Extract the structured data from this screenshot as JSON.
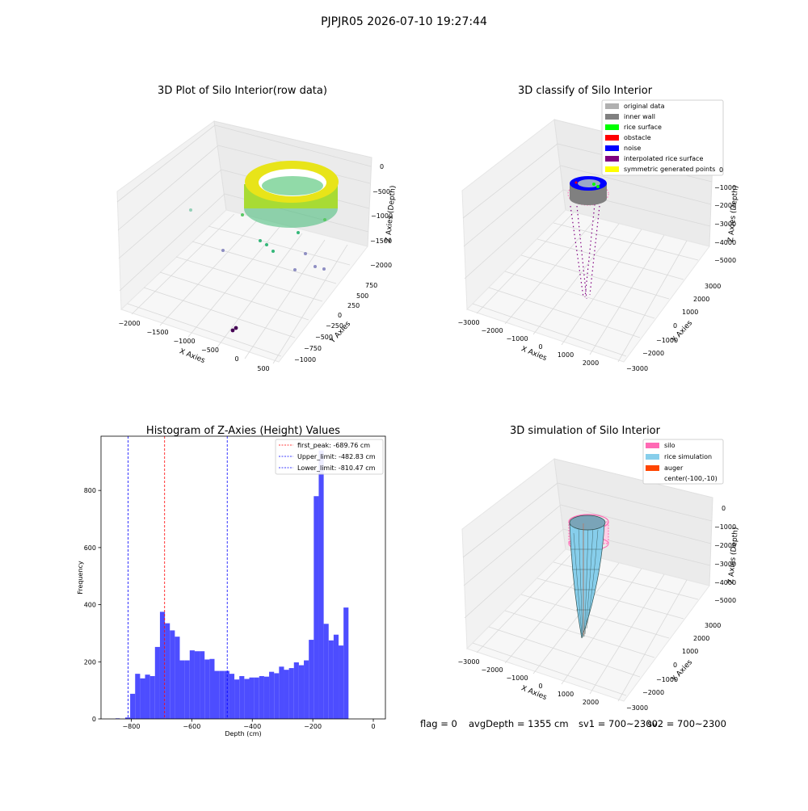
{
  "suptitle": "PJPJR05 2026-07-10 19:27:44",
  "status": {
    "flag": "flag = 0",
    "avg": "avgDepth = 1355 cm",
    "sv1": "sv1 = 700~2300",
    "sv2": "sv2 = 700~2300"
  },
  "colors": {
    "bar": "#4d4dff",
    "first_peak_line": "#ff0000",
    "limit_line": "#0000ff",
    "inner_wall": "#808080",
    "rice_surface": "#00ff00",
    "obstacle": "#ff0000",
    "noise": "#0000ff",
    "interpolated": "#800080",
    "symmetric": "#ffff00",
    "original": "#b0b0b0",
    "silo": "#ff69b4",
    "rice_sim": "#87ceeb",
    "auger": "#ff4500"
  },
  "chart_data": [
    {
      "type": "scatter",
      "projection": "3d",
      "title": "3D Plot of Silo Interior(row data)",
      "xlabel": "X Axies",
      "ylabel": "Y Axies",
      "zlabel": "Z Axies (Depth)",
      "xlim": [
        -2200,
        700
      ],
      "ylim": [
        -1050,
        800
      ],
      "zlim": [
        -2100,
        50
      ],
      "xticks": [
        -2000,
        -1500,
        -1000,
        -500,
        0,
        500
      ],
      "yticks": [
        -1000,
        -750,
        -500,
        -250,
        0,
        250,
        500,
        750
      ],
      "zticks": [
        -2000,
        -1500,
        -1000,
        -500,
        0
      ],
      "colormap": "viridis",
      "grid": true
    },
    {
      "type": "scatter",
      "projection": "3d",
      "title": "3D classify of Silo Interior",
      "xlabel": "X Axies",
      "ylabel": "Y Axies",
      "zlabel": "Z Axies (Depth)",
      "xlim": [
        -3200,
        2600
      ],
      "ylim": [
        -3200,
        3200
      ],
      "zlim": [
        -5700,
        300
      ],
      "xticks": [
        -3000,
        -2000,
        -1000,
        0,
        1000,
        2000
      ],
      "yticks": [
        -3000,
        -2000,
        -1000,
        0,
        1000,
        2000,
        3000
      ],
      "zticks": [
        -5000,
        -4000,
        -3000,
        -2000,
        -1000,
        0
      ],
      "legend": [
        "original data",
        "inner wall",
        "rice surface",
        "obstacle",
        "noise",
        "interpolated rice surface",
        "symmetric generated points"
      ],
      "legend_loc": "top-right",
      "grid": true
    },
    {
      "type": "bar",
      "subtype": "histogram",
      "title": "Histogram of Z-Axies (Height) Values",
      "xlabel": "Depth (cm)",
      "ylabel": "Frequency",
      "xlim": [
        -900,
        40
      ],
      "ylim": [
        0,
        990
      ],
      "xticks": [
        -800,
        -600,
        -400,
        -200,
        0
      ],
      "yticks": [
        0,
        200,
        400,
        600,
        800
      ],
      "bin_start": -820,
      "bin_width": 16.4,
      "counts": [
        5,
        88,
        158,
        142,
        155,
        150,
        252,
        375,
        335,
        310,
        288,
        205,
        205,
        240,
        237,
        237,
        208,
        210,
        168,
        168,
        168,
        158,
        138,
        150,
        140,
        145,
        145,
        150,
        148,
        165,
        160,
        183,
        172,
        178,
        198,
        188,
        205,
        277,
        780,
        940,
        333,
        275,
        295,
        257,
        390
      ],
      "extra_bars": [
        {
          "x": -852,
          "width": 14,
          "value": 2
        }
      ],
      "vlines": [
        {
          "x": -689.76,
          "label": "first_peak: -689.76 cm",
          "color": "#ff0000"
        },
        {
          "x": -482.83,
          "label": "Upper_limit: -482.83 cm",
          "color": "#0000ff"
        },
        {
          "x": -810.47,
          "label": "Lower_limit: -810.47 cm",
          "color": "#0000ff"
        }
      ],
      "legend_loc": "top-right"
    },
    {
      "type": "surface",
      "projection": "3d",
      "title": "3D simulation of Silo Interior",
      "xlabel": "X Axies",
      "ylabel": "Y Axies",
      "zlabel": "Z Axies (Depth)",
      "xlim": [
        -3200,
        2600
      ],
      "ylim": [
        -3200,
        3200
      ],
      "zlim": [
        -5700,
        300
      ],
      "xticks": [
        -3000,
        -2000,
        -1000,
        0,
        1000,
        2000
      ],
      "yticks": [
        -3000,
        -2000,
        -1000,
        0,
        1000,
        2000,
        3000
      ],
      "zticks": [
        -5000,
        -4000,
        -3000,
        -2000,
        -1000,
        0
      ],
      "legend": [
        "silo",
        "rice simulation",
        "auger",
        "center(-100,-10)"
      ],
      "legend_loc": "top-right",
      "grid": true
    }
  ]
}
